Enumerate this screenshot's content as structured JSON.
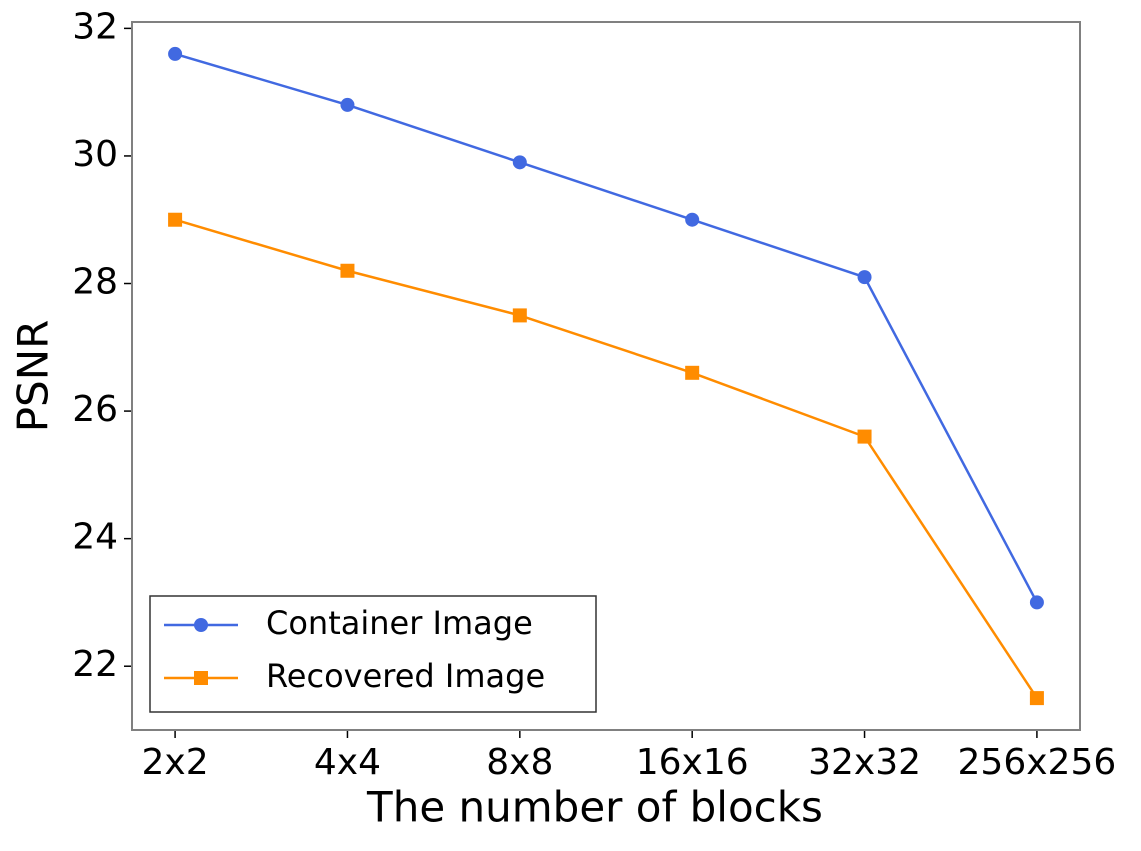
{
  "chart_data": {
    "type": "line",
    "x_label": "The number of blocks",
    "y_label": "PSNR",
    "categories": [
      "2x2",
      "4x4",
      "8x8",
      "16x16",
      "32x32",
      "256x256"
    ],
    "series": [
      {
        "name": "Container Image",
        "color": "#4169e1",
        "marker": "circle",
        "values": [
          31.6,
          30.8,
          29.9,
          29.0,
          28.1,
          23.0
        ]
      },
      {
        "name": "Recovered Image",
        "color": "#ff8c00",
        "marker": "square",
        "values": [
          29.0,
          28.2,
          27.5,
          26.6,
          25.6,
          21.5
        ]
      }
    ],
    "ylim": [
      21.0,
      32.1
    ],
    "yticks": [
      22,
      24,
      26,
      28,
      30,
      32
    ],
    "grid": false,
    "legend": "lower left"
  }
}
